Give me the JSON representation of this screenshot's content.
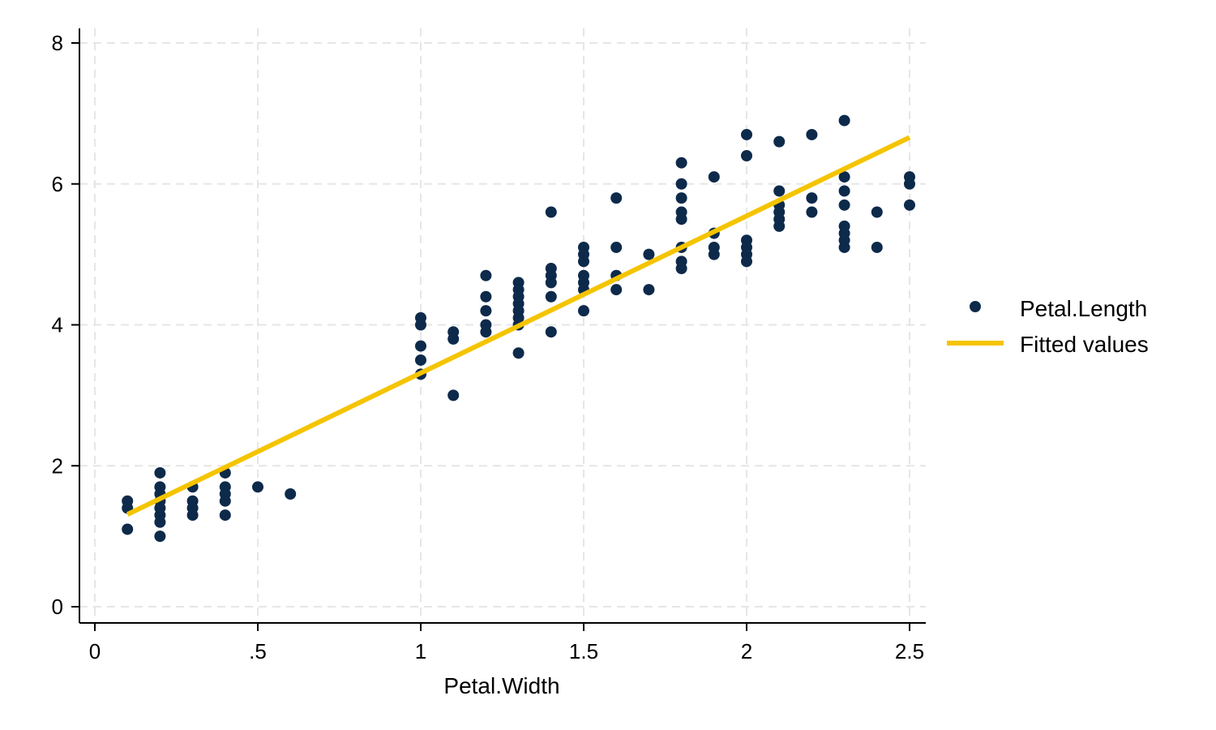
{
  "chart_data": {
    "type": "scatter",
    "title": "",
    "xlabel": "Petal.Width",
    "ylabel": "",
    "xlim": [
      0,
      2.5
    ],
    "ylim": [
      0,
      8
    ],
    "xticks": [
      0,
      0.5,
      1,
      1.5,
      2,
      2.5
    ],
    "xtick_labels": [
      "0",
      ".5",
      "1",
      "1.5",
      "2",
      "2.5"
    ],
    "yticks": [
      0,
      2,
      4,
      6,
      8
    ],
    "ytick_labels": [
      "0",
      "2",
      "4",
      "6",
      "8"
    ],
    "grid": true,
    "legend_position": "right",
    "series": [
      {
        "name": "Petal.Length",
        "kind": "scatter",
        "color": "#0d2a4b",
        "points": [
          [
            0.1,
            1.5
          ],
          [
            0.1,
            1.4
          ],
          [
            0.1,
            1.1
          ],
          [
            0.2,
            1.9
          ],
          [
            0.2,
            1.7
          ],
          [
            0.2,
            1.6
          ],
          [
            0.2,
            1.5
          ],
          [
            0.2,
            1.4
          ],
          [
            0.2,
            1.3
          ],
          [
            0.2,
            1.2
          ],
          [
            0.2,
            1.0
          ],
          [
            0.3,
            1.7
          ],
          [
            0.3,
            1.5
          ],
          [
            0.3,
            1.4
          ],
          [
            0.3,
            1.3
          ],
          [
            0.4,
            1.9
          ],
          [
            0.4,
            1.7
          ],
          [
            0.4,
            1.6
          ],
          [
            0.4,
            1.5
          ],
          [
            0.4,
            1.3
          ],
          [
            0.5,
            1.7
          ],
          [
            0.6,
            1.6
          ],
          [
            1.0,
            4.1
          ],
          [
            1.0,
            4.0
          ],
          [
            1.0,
            3.7
          ],
          [
            1.0,
            3.5
          ],
          [
            1.0,
            3.3
          ],
          [
            1.1,
            3.9
          ],
          [
            1.1,
            3.8
          ],
          [
            1.1,
            3.0
          ],
          [
            1.2,
            4.7
          ],
          [
            1.2,
            4.4
          ],
          [
            1.2,
            4.2
          ],
          [
            1.2,
            4.0
          ],
          [
            1.2,
            3.9
          ],
          [
            1.3,
            4.6
          ],
          [
            1.3,
            4.5
          ],
          [
            1.3,
            4.4
          ],
          [
            1.3,
            4.3
          ],
          [
            1.3,
            4.2
          ],
          [
            1.3,
            4.1
          ],
          [
            1.3,
            4.0
          ],
          [
            1.3,
            3.6
          ],
          [
            1.4,
            5.6
          ],
          [
            1.4,
            4.8
          ],
          [
            1.4,
            4.7
          ],
          [
            1.4,
            4.6
          ],
          [
            1.4,
            4.4
          ],
          [
            1.4,
            3.9
          ],
          [
            1.5,
            5.1
          ],
          [
            1.5,
            5.0
          ],
          [
            1.5,
            4.9
          ],
          [
            1.5,
            4.7
          ],
          [
            1.5,
            4.6
          ],
          [
            1.5,
            4.5
          ],
          [
            1.5,
            4.2
          ],
          [
            1.6,
            5.8
          ],
          [
            1.6,
            5.1
          ],
          [
            1.6,
            4.7
          ],
          [
            1.6,
            4.5
          ],
          [
            1.7,
            5.0
          ],
          [
            1.7,
            4.5
          ],
          [
            1.8,
            6.3
          ],
          [
            1.8,
            6.0
          ],
          [
            1.8,
            5.8
          ],
          [
            1.8,
            5.6
          ],
          [
            1.8,
            5.5
          ],
          [
            1.8,
            5.1
          ],
          [
            1.8,
            4.9
          ],
          [
            1.8,
            4.8
          ],
          [
            1.9,
            6.1
          ],
          [
            1.9,
            5.3
          ],
          [
            1.9,
            5.1
          ],
          [
            1.9,
            5.0
          ],
          [
            2.0,
            6.7
          ],
          [
            2.0,
            6.4
          ],
          [
            2.0,
            5.2
          ],
          [
            2.0,
            5.1
          ],
          [
            2.0,
            5.0
          ],
          [
            2.0,
            4.9
          ],
          [
            2.1,
            6.6
          ],
          [
            2.1,
            5.9
          ],
          [
            2.1,
            5.7
          ],
          [
            2.1,
            5.6
          ],
          [
            2.1,
            5.5
          ],
          [
            2.1,
            5.4
          ],
          [
            2.2,
            6.7
          ],
          [
            2.2,
            5.8
          ],
          [
            2.2,
            5.6
          ],
          [
            2.3,
            6.9
          ],
          [
            2.3,
            6.1
          ],
          [
            2.3,
            5.9
          ],
          [
            2.3,
            5.7
          ],
          [
            2.3,
            5.4
          ],
          [
            2.3,
            5.3
          ],
          [
            2.3,
            5.2
          ],
          [
            2.3,
            5.1
          ],
          [
            2.4,
            5.6
          ],
          [
            2.4,
            5.1
          ],
          [
            2.5,
            6.1
          ],
          [
            2.5,
            6.0
          ],
          [
            2.5,
            5.7
          ]
        ]
      },
      {
        "name": "Fitted values",
        "kind": "line",
        "color": "#f5c400",
        "points": [
          [
            0.1,
            1.31
          ],
          [
            2.5,
            6.66
          ]
        ]
      }
    ]
  }
}
